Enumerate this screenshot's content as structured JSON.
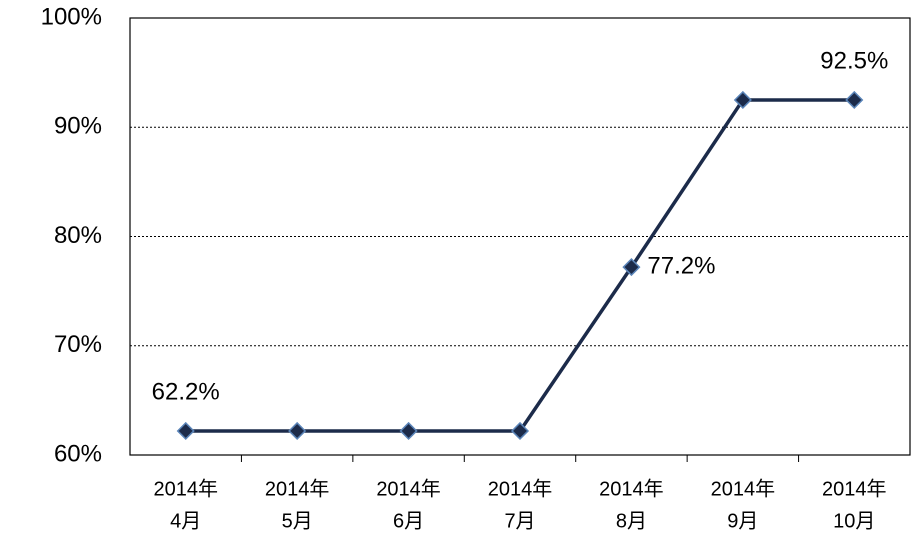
{
  "chart_data": {
    "type": "line",
    "categories": [
      [
        "2014年",
        "4月"
      ],
      [
        "2014年",
        "5月"
      ],
      [
        "2014年",
        "6月"
      ],
      [
        "2014年",
        "7月"
      ],
      [
        "2014年",
        "8月"
      ],
      [
        "2014年",
        "9月"
      ],
      [
        "2014年",
        "10月"
      ]
    ],
    "values": [
      62.2,
      62.2,
      62.2,
      62.2,
      77.2,
      92.5,
      92.5
    ],
    "value_labels": [
      "62.2%",
      null,
      null,
      null,
      "77.2%",
      null,
      "92.5%"
    ],
    "color": "#1c2b4a",
    "marker_stroke": "#5a84b8",
    "ylim": [
      60,
      100
    ],
    "yticks": [
      {
        "value": 60,
        "label": "60%"
      },
      {
        "value": 70,
        "label": "70%"
      },
      {
        "value": 80,
        "label": "80%"
      },
      {
        "value": 90,
        "label": "90%"
      },
      {
        "value": 100,
        "label": "100%"
      }
    ],
    "grid": true
  }
}
